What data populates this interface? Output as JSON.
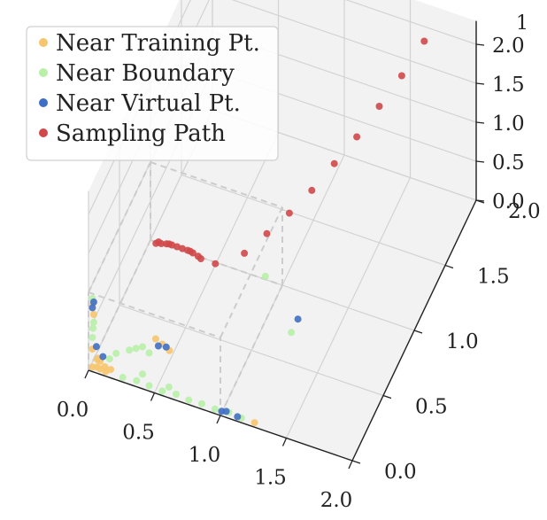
{
  "corner_label": "1",
  "colors": {
    "near_training": "#f7c56e",
    "near_boundary": "#b8f0a8",
    "near_virtual": "#3f6fc4",
    "sampling_path": "#d0484a",
    "pane": "#f2f2f2",
    "grid": "#d3d3d3",
    "box": "#cccccc"
  },
  "chart_data": {
    "type": "scatter",
    "projection": "3d",
    "title": "",
    "xlabel": "",
    "ylabel": "",
    "zlabel": "",
    "xlim": [
      0,
      2
    ],
    "ylim": [
      0,
      2
    ],
    "zlim": [
      0,
      2.3
    ],
    "grid": true,
    "legend_position": "upper-left",
    "x_ticks": [
      "0.0",
      "0.5",
      "1.0",
      "1.5",
      "2.0"
    ],
    "y_ticks": [
      "0.0",
      "0.5",
      "1.0",
      "1.5",
      "2.0"
    ],
    "z_ticks": [
      "0.0",
      "0.5",
      "1.0",
      "1.5",
      "2.0"
    ],
    "series": [
      {
        "name": "Near Training Pt.",
        "color": "#f7c56e",
        "points": [
          [
            0.02,
            0.02,
            0.02
          ],
          [
            0.05,
            0.03,
            0.02
          ],
          [
            0.08,
            0.02,
            0.03
          ],
          [
            0.1,
            0.05,
            0.02
          ],
          [
            0.03,
            0.08,
            0.02
          ],
          [
            0.12,
            0.02,
            0.02
          ],
          [
            0.06,
            0.06,
            0.05
          ],
          [
            0.15,
            0.04,
            0.03
          ],
          [
            0.02,
            0.02,
            0.25
          ],
          [
            0.03,
            0.02,
            0.7
          ],
          [
            0.02,
            0.03,
            0.82
          ],
          [
            0.55,
            0.02,
            0.62
          ],
          [
            0.6,
            0.03,
            0.55
          ],
          [
            0.5,
            0.02,
            0.66
          ],
          [
            1.25,
            0.02,
            0.02
          ],
          [
            0.05,
            0.05,
            0.1
          ]
        ]
      },
      {
        "name": "Near Boundary",
        "color": "#b8f0a8",
        "points": [
          [
            0.25,
            0.02,
            0.02
          ],
          [
            0.35,
            0.03,
            0.02
          ],
          [
            0.45,
            0.02,
            0.03
          ],
          [
            0.55,
            0.02,
            0.02
          ],
          [
            0.65,
            0.03,
            0.02
          ],
          [
            0.75,
            0.02,
            0.02
          ],
          [
            0.85,
            0.02,
            0.03
          ],
          [
            0.95,
            0.02,
            0.02
          ],
          [
            1.05,
            0.03,
            0.02
          ],
          [
            1.15,
            0.02,
            0.02
          ],
          [
            0.02,
            0.02,
            0.4
          ],
          [
            0.02,
            0.03,
            0.5
          ],
          [
            0.03,
            0.02,
            0.6
          ],
          [
            0.02,
            0.02,
            0.9
          ],
          [
            0.3,
            0.02,
            0.4
          ],
          [
            0.4,
            0.02,
            0.5
          ],
          [
            0.45,
            0.02,
            0.45
          ],
          [
            0.2,
            0.02,
            0.3
          ],
          [
            1.2,
            0.3,
            1.4
          ],
          [
            1.35,
            0.4,
            0.6
          ],
          [
            0.4,
            0.02,
            0.15
          ],
          [
            0.6,
            0.02,
            0.1
          ],
          [
            0.15,
            0.02,
            0.2
          ],
          [
            0.35,
            0.02,
            0.45
          ]
        ]
      },
      {
        "name": "Near Virtual Pt.",
        "color": "#3f6fc4",
        "points": [
          [
            0.02,
            0.02,
            0.78
          ],
          [
            0.03,
            0.02,
            0.86
          ],
          [
            0.05,
            0.02,
            0.3
          ],
          [
            0.1,
            0.02,
            0.2
          ],
          [
            0.58,
            0.02,
            0.6
          ],
          [
            0.52,
            0.02,
            0.58
          ],
          [
            1.0,
            0.02,
            0.02
          ],
          [
            1.03,
            0.03,
            0.02
          ],
          [
            1.12,
            0.02,
            0.02
          ],
          [
            1.4,
            0.4,
            0.8
          ]
        ]
      },
      {
        "name": "Sampling Path",
        "color": "#d0484a",
        "points": [
          [
            0.3,
            0.45,
            1.05
          ],
          [
            0.34,
            0.45,
            1.07
          ],
          [
            0.38,
            0.45,
            1.09
          ],
          [
            0.42,
            0.45,
            1.1
          ],
          [
            0.46,
            0.45,
            1.1
          ],
          [
            0.5,
            0.45,
            1.1
          ],
          [
            0.54,
            0.45,
            1.1
          ],
          [
            0.58,
            0.45,
            1.09
          ],
          [
            0.62,
            0.45,
            1.07
          ],
          [
            0.32,
            0.45,
            1.08
          ],
          [
            0.56,
            0.45,
            1.1
          ],
          [
            0.4,
            0.45,
            1.1
          ],
          [
            0.64,
            0.45,
            1.05
          ],
          [
            0.75,
            0.45,
            1.05
          ],
          [
            0.9,
            0.6,
            1.02
          ],
          [
            1.0,
            0.75,
            1.08
          ],
          [
            1.1,
            0.9,
            1.15
          ],
          [
            1.2,
            1.05,
            1.25
          ],
          [
            1.3,
            1.2,
            1.4
          ],
          [
            1.4,
            1.35,
            1.55
          ],
          [
            1.5,
            1.5,
            1.75
          ],
          [
            1.6,
            1.65,
            1.95
          ],
          [
            1.7,
            1.8,
            2.2
          ]
        ]
      }
    ]
  }
}
